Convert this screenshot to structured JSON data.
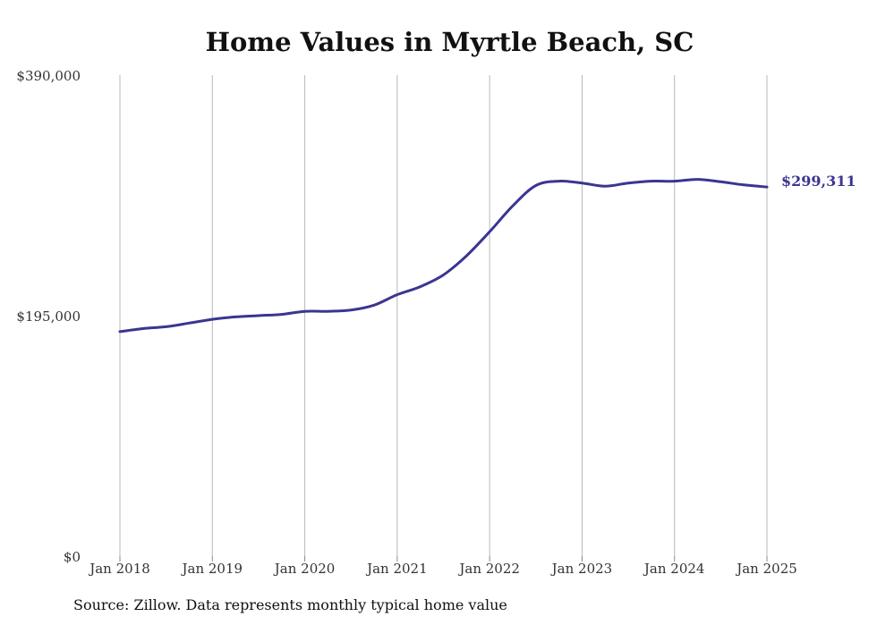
{
  "chart_data": {
    "type": "line",
    "title": "Home Values in Myrtle Beach, SC",
    "source": "Source: Zillow. Data represents monthly typical home value",
    "y_ticks": [
      {
        "value": 390000,
        "label": "$390,000"
      },
      {
        "value": 195000,
        "label": "$195,000"
      },
      {
        "value": 0,
        "label": "$0"
      }
    ],
    "ylim": [
      0,
      390000
    ],
    "x_ticks": [
      {
        "value": "2018-01",
        "label": "Jan 2018"
      },
      {
        "value": "2019-01",
        "label": "Jan 2019"
      },
      {
        "value": "2020-01",
        "label": "Jan 2020"
      },
      {
        "value": "2021-01",
        "label": "Jan 2021"
      },
      {
        "value": "2022-01",
        "label": "Jan 2022"
      },
      {
        "value": "2023-01",
        "label": "Jan 2023"
      },
      {
        "value": "2024-01",
        "label": "Jan 2024"
      },
      {
        "value": "2025-01",
        "label": "Jan 2025"
      }
    ],
    "grid": "vertical",
    "series": [
      {
        "color": "#3b3590",
        "end_label": "$299,311",
        "points": [
          {
            "x": "2018-01",
            "y": 182000
          },
          {
            "x": "2018-04",
            "y": 184500
          },
          {
            "x": "2018-07",
            "y": 186000
          },
          {
            "x": "2018-10",
            "y": 189000
          },
          {
            "x": "2019-01",
            "y": 192000
          },
          {
            "x": "2019-04",
            "y": 194000
          },
          {
            "x": "2019-07",
            "y": 195000
          },
          {
            "x": "2019-10",
            "y": 196000
          },
          {
            "x": "2020-01",
            "y": 198500
          },
          {
            "x": "2020-04",
            "y": 198500
          },
          {
            "x": "2020-07",
            "y": 199500
          },
          {
            "x": "2020-10",
            "y": 203500
          },
          {
            "x": "2021-01",
            "y": 212000
          },
          {
            "x": "2021-04",
            "y": 218500
          },
          {
            "x": "2021-07",
            "y": 228000
          },
          {
            "x": "2021-10",
            "y": 243500
          },
          {
            "x": "2022-01",
            "y": 263000
          },
          {
            "x": "2022-04",
            "y": 284000
          },
          {
            "x": "2022-07",
            "y": 300500
          },
          {
            "x": "2022-10",
            "y": 304000
          },
          {
            "x": "2023-01",
            "y": 302500
          },
          {
            "x": "2023-04",
            "y": 300000
          },
          {
            "x": "2023-07",
            "y": 302500
          },
          {
            "x": "2023-10",
            "y": 304000
          },
          {
            "x": "2024-01",
            "y": 304000
          },
          {
            "x": "2024-04",
            "y": 305500
          },
          {
            "x": "2024-07",
            "y": 303500
          },
          {
            "x": "2024-10",
            "y": 301000
          },
          {
            "x": "2025-01",
            "y": 299311
          }
        ]
      }
    ]
  }
}
